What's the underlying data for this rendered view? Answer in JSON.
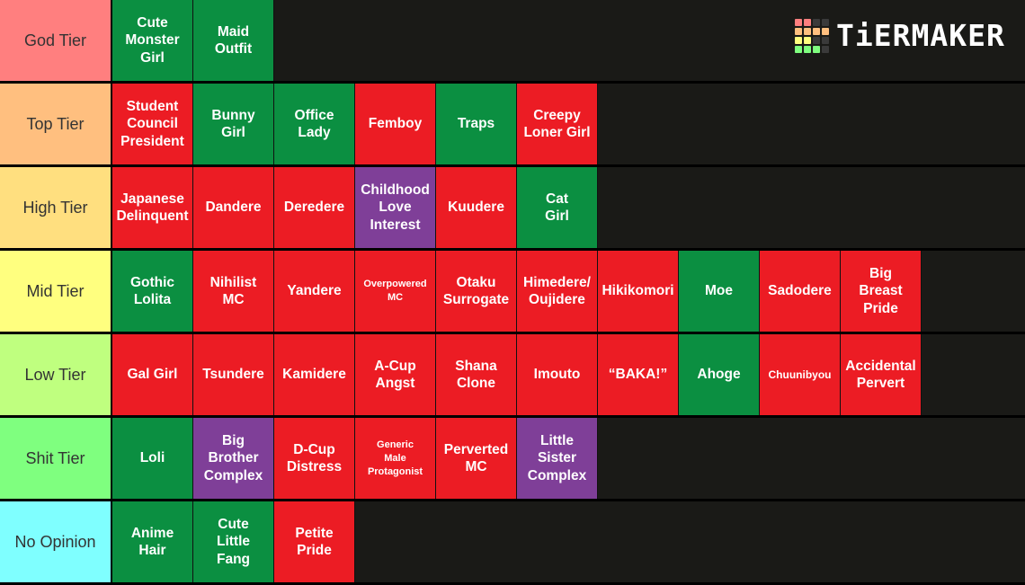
{
  "logo": {
    "text": "TiERMAKER",
    "grid_colors": [
      "#ff7f7f",
      "#ff7f7f",
      "#3a3a3a",
      "#3a3a3a",
      "#ffbf7f",
      "#ffbf7f",
      "#ffbf7f",
      "#ffbf7f",
      "#ffff7f",
      "#ffff7f",
      "#3a3a3a",
      "#3a3a3a",
      "#7fff7f",
      "#7fff7f",
      "#7fff7f",
      "#3a3a3a"
    ]
  },
  "colors": {
    "green": "#0b8f41",
    "red": "#ec1c24",
    "purple": "#7f3f98",
    "background": "#1a1a17"
  },
  "tiers": [
    {
      "label": "God Tier",
      "color": "#ff7f7f",
      "items": [
        {
          "text": "Cute\nMonster\nGirl",
          "color": "green"
        },
        {
          "text": "Maid\nOutfit",
          "color": "green"
        }
      ]
    },
    {
      "label": "Top Tier",
      "color": "#ffbf7f",
      "items": [
        {
          "text": "Student\nCouncil\nPresident",
          "color": "red"
        },
        {
          "text": "Bunny\nGirl",
          "color": "green"
        },
        {
          "text": "Office\nLady",
          "color": "green"
        },
        {
          "text": "Femboy",
          "color": "red"
        },
        {
          "text": "Traps",
          "color": "green"
        },
        {
          "text": "Creepy\nLoner Girl",
          "color": "red"
        }
      ]
    },
    {
      "label": "High Tier",
      "color": "#ffdf7f",
      "items": [
        {
          "text": "Japanese\nDelinquent",
          "color": "red"
        },
        {
          "text": "Dandere",
          "color": "red"
        },
        {
          "text": "Deredere",
          "color": "red"
        },
        {
          "text": "Childhood\nLove\nInterest",
          "color": "purple"
        },
        {
          "text": "Kuudere",
          "color": "red"
        },
        {
          "text": "Cat\nGirl",
          "color": "green"
        }
      ]
    },
    {
      "label": "Mid Tier",
      "color": "#ffff7f",
      "items": [
        {
          "text": "Gothic\nLolita",
          "color": "green"
        },
        {
          "text": "Nihilist\nMC",
          "color": "red"
        },
        {
          "text": "Yandere",
          "color": "red"
        },
        {
          "text": "Overpowered\nMC",
          "color": "red",
          "size": "tiny"
        },
        {
          "text": "Otaku\nSurrogate",
          "color": "red"
        },
        {
          "text": "Himedere/\nOujidere",
          "color": "red"
        },
        {
          "text": "Hikikomori",
          "color": "red"
        },
        {
          "text": "Moe",
          "color": "green"
        },
        {
          "text": "Sadodere",
          "color": "red"
        },
        {
          "text": "Big\nBreast\nPride",
          "color": "red"
        }
      ]
    },
    {
      "label": "Low Tier",
      "color": "#bfff7f",
      "items": [
        {
          "text": "Gal Girl",
          "color": "red"
        },
        {
          "text": "Tsundere",
          "color": "red"
        },
        {
          "text": "Kamidere",
          "color": "red"
        },
        {
          "text": "A-Cup\nAngst",
          "color": "red"
        },
        {
          "text": "Shana\nClone",
          "color": "red"
        },
        {
          "text": "Imouto",
          "color": "red"
        },
        {
          "text": "“BAKA!”",
          "color": "red"
        },
        {
          "text": "Ahoge",
          "color": "green"
        },
        {
          "text": "Chuunibyou",
          "color": "red",
          "size": "small"
        },
        {
          "text": "Accidental\nPervert",
          "color": "red"
        }
      ]
    },
    {
      "label": "Shit Tier",
      "color": "#7fff7f",
      "items": [
        {
          "text": "Loli",
          "color": "green"
        },
        {
          "text": "Big\nBrother\nComplex",
          "color": "purple"
        },
        {
          "text": "D-Cup\nDistress",
          "color": "red"
        },
        {
          "text": "Generic\nMale\nProtagonist",
          "color": "red",
          "size": "tiny"
        },
        {
          "text": "Perverted\nMC",
          "color": "red"
        },
        {
          "text": "Little\nSister\nComplex",
          "color": "purple"
        }
      ]
    },
    {
      "label": "No Opinion",
      "color": "#7fffff",
      "items": [
        {
          "text": "Anime\nHair",
          "color": "green"
        },
        {
          "text": "Cute\nLittle\nFang",
          "color": "green"
        },
        {
          "text": "Petite\nPride",
          "color": "red"
        }
      ]
    }
  ]
}
